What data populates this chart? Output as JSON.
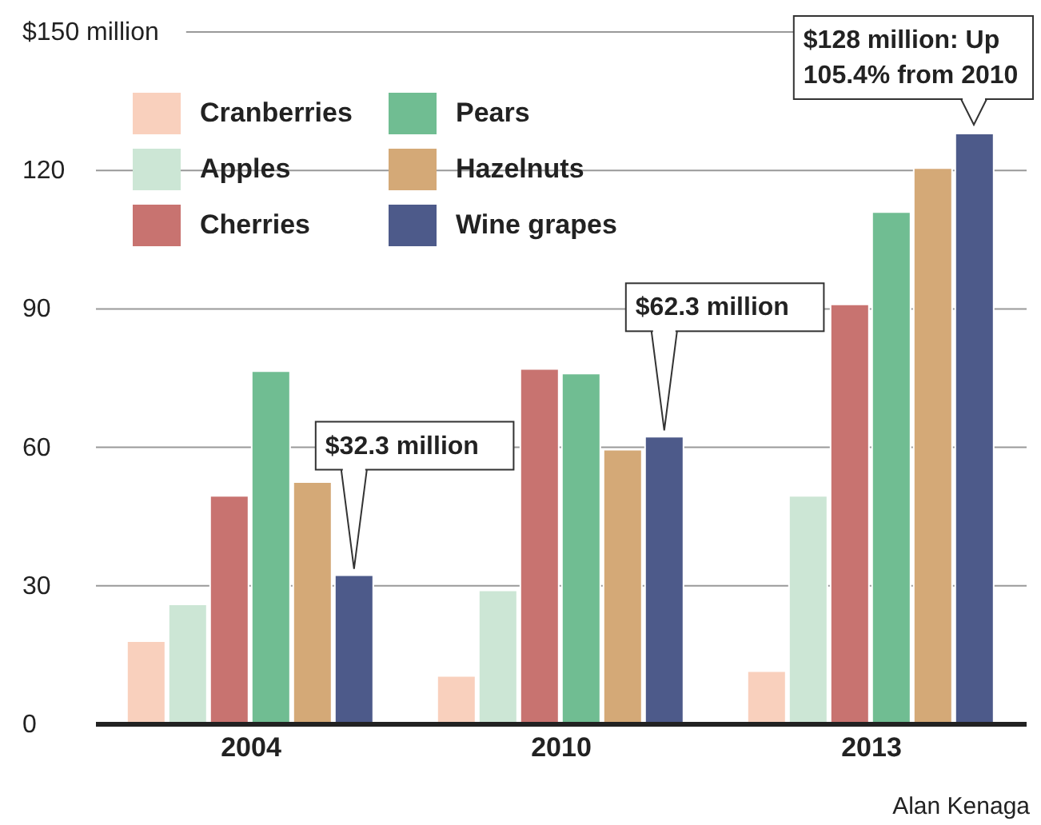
{
  "chart_data": {
    "type": "bar",
    "categories": [
      "2004",
      "2010",
      "2013"
    ],
    "series": [
      {
        "name": "Cranberries",
        "color": "#f9d0bd",
        "values": [
          18,
          10.5,
          11.5
        ]
      },
      {
        "name": "Apples",
        "color": "#cce6d5",
        "values": [
          26,
          29,
          49.5
        ]
      },
      {
        "name": "Cherries",
        "color": "#c87370",
        "values": [
          49.5,
          77,
          91
        ]
      },
      {
        "name": "Pears",
        "color": "#70bd92",
        "values": [
          76.5,
          76,
          111
        ]
      },
      {
        "name": "Hazelnuts",
        "color": "#d4a977",
        "values": [
          52.5,
          59.5,
          120.5
        ]
      },
      {
        "name": "Wine grapes",
        "color": "#4d5a8a",
        "values": [
          32.3,
          62.3,
          128
        ],
        "value_labels": [
          "$32.3 million",
          "$62.3 million",
          null
        ]
      }
    ],
    "ylim": [
      0,
      150
    ],
    "yticks": [
      0,
      30,
      60,
      90,
      120,
      {
        "value": 150,
        "label": "$150 million"
      }
    ],
    "grid": "y",
    "legend": "top left",
    "annotations": [
      "$128 million: Up 105.4% from 2010",
      "Alan Kenaga"
    ]
  }
}
